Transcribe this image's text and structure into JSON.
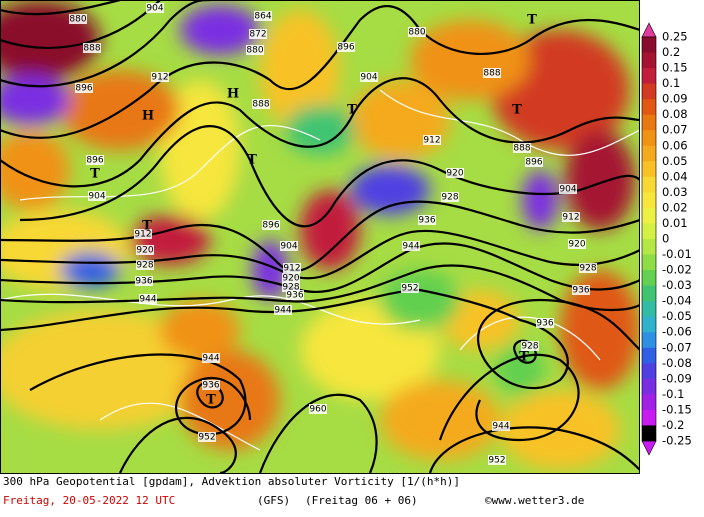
{
  "map": {
    "contour_labels": [
      "880",
      "904",
      "888",
      "896",
      "912",
      "864",
      "872",
      "880",
      "888",
      "896",
      "880",
      "888",
      "904",
      "912",
      "888",
      "896",
      "920",
      "928",
      "904",
      "912",
      "920",
      "896",
      "904",
      "912",
      "920",
      "928",
      "936",
      "944",
      "896",
      "904",
      "912",
      "920",
      "928",
      "936",
      "944",
      "936",
      "944",
      "952",
      "928",
      "936",
      "936",
      "928",
      "944",
      "936",
      "952",
      "960",
      "944",
      "952"
    ],
    "pressure_symbols": [
      "T",
      "T",
      "H",
      "H",
      "T",
      "T",
      "T",
      "T",
      "T",
      "T"
    ]
  },
  "colorbar": {
    "labels": [
      "0.25",
      "0.2",
      "0.15",
      "0.1",
      "0.09",
      "0.08",
      "0.07",
      "0.06",
      "0.05",
      "0.04",
      "0.03",
      "0.02",
      "0.01",
      "0",
      "-0.01",
      "-0.02",
      "-0.03",
      "-0.04",
      "-0.05",
      "-0.06",
      "-0.07",
      "-0.08",
      "-0.09",
      "-0.1",
      "-0.15",
      "-0.2",
      "-0.25"
    ],
    "colors": [
      "#e03c9c",
      "#8a0c2c",
      "#a51232",
      "#c21e3c",
      "#d23a22",
      "#e05812",
      "#e87812",
      "#f09214",
      "#f4aa1e",
      "#f8c226",
      "#f8d834",
      "#f6e63e",
      "#eef044",
      "#d4f044",
      "#b4e846",
      "#8edc46",
      "#62d050",
      "#40c472",
      "#32bca6",
      "#30b2cc",
      "#2e90e2",
      "#3060e4",
      "#5040e2",
      "#7a2ee2",
      "#a020e6",
      "#c81cf0"
    ]
  },
  "footer": {
    "title": "300 hPa Geopotential [gpdam], Advektion absoluter Vorticity [1/(h*h)]",
    "date": "Freitag, 20-05-2022  12 UTC",
    "model": "(GFS)",
    "run": "(Freitag 06 + 06)",
    "source": "©www.wetter3.de"
  }
}
